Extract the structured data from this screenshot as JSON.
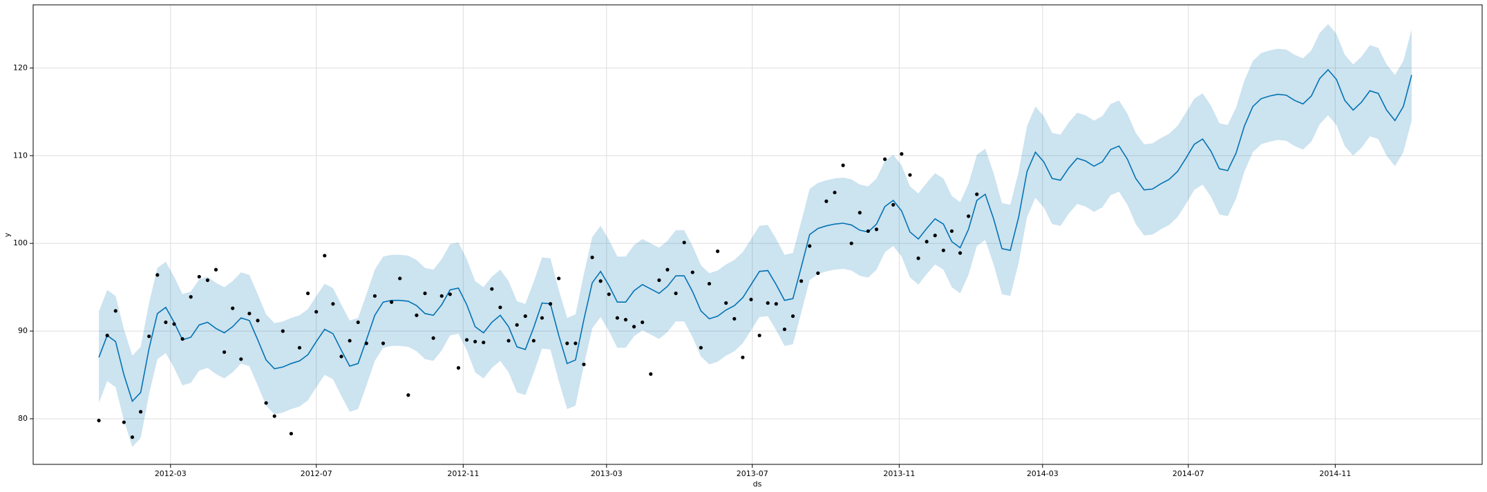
{
  "chart_data": {
    "type": "line",
    "xlabel": "ds",
    "ylabel": "y",
    "grid": true,
    "xlim": [
      "2011-11-07",
      "2015-03-04"
    ],
    "xticks": [
      {
        "value": "2012-03-01",
        "label": "2012-03"
      },
      {
        "value": "2012-07-01",
        "label": "2012-07"
      },
      {
        "value": "2012-11-01",
        "label": "2012-11"
      },
      {
        "value": "2013-03-01",
        "label": "2013-03"
      },
      {
        "value": "2013-07-01",
        "label": "2013-07"
      },
      {
        "value": "2013-11-01",
        "label": "2013-11"
      },
      {
        "value": "2014-03-01",
        "label": "2014-03"
      },
      {
        "value": "2014-07-01",
        "label": "2014-07"
      },
      {
        "value": "2014-11-01",
        "label": "2014-11"
      }
    ],
    "ylim": [
      74.8,
      127.2
    ],
    "yticks": [
      80,
      90,
      100,
      110,
      120
    ],
    "x": [
      "2012-01-01",
      "2012-01-08",
      "2012-01-15",
      "2012-01-22",
      "2012-01-29",
      "2012-02-05",
      "2012-02-12",
      "2012-02-19",
      "2012-02-26",
      "2012-03-04",
      "2012-03-11",
      "2012-03-18",
      "2012-03-25",
      "2012-04-01",
      "2012-04-08",
      "2012-04-15",
      "2012-04-22",
      "2012-04-29",
      "2012-05-06",
      "2012-05-13",
      "2012-05-20",
      "2012-05-27",
      "2012-06-03",
      "2012-06-10",
      "2012-06-17",
      "2012-06-24",
      "2012-07-01",
      "2012-07-08",
      "2012-07-15",
      "2012-07-22",
      "2012-07-29",
      "2012-08-05",
      "2012-08-12",
      "2012-08-19",
      "2012-08-26",
      "2012-09-02",
      "2012-09-09",
      "2012-09-16",
      "2012-09-23",
      "2012-09-30",
      "2012-10-07",
      "2012-10-14",
      "2012-10-21",
      "2012-10-28",
      "2012-11-04",
      "2012-11-11",
      "2012-11-18",
      "2012-11-25",
      "2012-12-02",
      "2012-12-09",
      "2012-12-16",
      "2012-12-23",
      "2012-12-30",
      "2013-01-06",
      "2013-01-13",
      "2013-01-20",
      "2013-01-27",
      "2013-02-03",
      "2013-02-10",
      "2013-02-17",
      "2013-02-24",
      "2013-03-03",
      "2013-03-10",
      "2013-03-17",
      "2013-03-24",
      "2013-03-31",
      "2013-04-07",
      "2013-04-14",
      "2013-04-21",
      "2013-04-28",
      "2013-05-05",
      "2013-05-12",
      "2013-05-19",
      "2013-05-26",
      "2013-06-02",
      "2013-06-09",
      "2013-06-16",
      "2013-06-23",
      "2013-06-30",
      "2013-07-07",
      "2013-07-14",
      "2013-07-21",
      "2013-07-28",
      "2013-08-04",
      "2013-08-11",
      "2013-08-18",
      "2013-08-25",
      "2013-09-01",
      "2013-09-08",
      "2013-09-15",
      "2013-09-22",
      "2013-09-29",
      "2013-10-06",
      "2013-10-13",
      "2013-10-20",
      "2013-10-27",
      "2013-11-03",
      "2013-11-10",
      "2013-11-17",
      "2013-11-24",
      "2013-12-01",
      "2013-12-08",
      "2013-12-15",
      "2013-12-22",
      "2013-12-29",
      "2014-01-05",
      "2014-01-12",
      "2014-01-19",
      "2014-01-26",
      "2014-02-02",
      "2014-02-09",
      "2014-02-16",
      "2014-02-23",
      "2014-03-02",
      "2014-03-09",
      "2014-03-16",
      "2014-03-23",
      "2014-03-30",
      "2014-04-06",
      "2014-04-13",
      "2014-04-20",
      "2014-04-27",
      "2014-05-04",
      "2014-05-11",
      "2014-05-18",
      "2014-05-25",
      "2014-06-01",
      "2014-06-08",
      "2014-06-15",
      "2014-06-22",
      "2014-06-29",
      "2014-07-06",
      "2014-07-13",
      "2014-07-20",
      "2014-07-27",
      "2014-08-03",
      "2014-08-10",
      "2014-08-17",
      "2014-08-24",
      "2014-08-31",
      "2014-09-07",
      "2014-09-14",
      "2014-09-21",
      "2014-09-28",
      "2014-10-05",
      "2014-10-12",
      "2014-10-19",
      "2014-10-26",
      "2014-11-02",
      "2014-11-09",
      "2014-11-16",
      "2014-11-23",
      "2014-11-30",
      "2014-12-07",
      "2014-12-14",
      "2014-12-21",
      "2014-12-28",
      "2015-01-04"
    ],
    "series": [
      {
        "type": "band",
        "color": "#0072b2",
        "opacity": 0.2,
        "lower": [
          81.8,
          84.3,
          83.6,
          79.8,
          76.8,
          77.8,
          82.8,
          86.8,
          87.5,
          85.8,
          83.8,
          84.1,
          85.5,
          85.8,
          85.1,
          84.6,
          85.3,
          86.3,
          86,
          83.8,
          81.5,
          80.5,
          80.7,
          81.1,
          81.4,
          82.1,
          83.6,
          85,
          84.5,
          82.6,
          80.8,
          81.1,
          83.8,
          86.6,
          88.1,
          88.3,
          88.3,
          88.2,
          87.7,
          86.8,
          86.6,
          87.8,
          89.5,
          89.7,
          87.8,
          85.3,
          84.6,
          85.8,
          86.6,
          85.3,
          83,
          82.7,
          85.2,
          88,
          87.9,
          84.3,
          81.1,
          81.5,
          86.1,
          90.3,
          91.6,
          90,
          88.1,
          88.1,
          89.4,
          90.1,
          89.6,
          89.1,
          89.9,
          91.1,
          91.1,
          89.3,
          87.1,
          86.2,
          86.5,
          87.2,
          87.7,
          88.6,
          90.1,
          91.6,
          91.7,
          90.1,
          88.3,
          88.5,
          92.1,
          95.8,
          96.5,
          96.8,
          97,
          97.1,
          96.9,
          96.3,
          96.1,
          97,
          99,
          99.7,
          98.5,
          96.1,
          95.3,
          96.5,
          97.6,
          97,
          95,
          94.3,
          96.4,
          99.7,
          100.4,
          97.6,
          94.2,
          94,
          97.8,
          103,
          105.2,
          104.1,
          102.2,
          102,
          103.4,
          104.5,
          104.2,
          103.6,
          104.1,
          105.5,
          105.9,
          104.4,
          102.2,
          100.9,
          101,
          101.6,
          102.1,
          103,
          104.5,
          106.1,
          106.7,
          105.3,
          103.3,
          103.1,
          105.1,
          108.2,
          110.4,
          111.3,
          111.6,
          111.8,
          111.7,
          111.1,
          110.7,
          111.6,
          113.6,
          114.6,
          113.5,
          111.1,
          110,
          110.9,
          112.2,
          111.9,
          110,
          108.8,
          110.4,
          114
        ],
        "upper": [
          92.2,
          94.7,
          94,
          90.2,
          87.2,
          88.2,
          93.2,
          97.2,
          97.9,
          96.2,
          94.2,
          94.5,
          95.9,
          96.2,
          95.5,
          95,
          95.7,
          96.7,
          96.4,
          94.2,
          91.9,
          90.9,
          91.1,
          91.5,
          91.8,
          92.5,
          94,
          95.4,
          94.9,
          93,
          91.2,
          91.5,
          94.2,
          97,
          98.5,
          98.7,
          98.7,
          98.6,
          98.1,
          97.2,
          97,
          98.2,
          99.9,
          100.1,
          98.2,
          95.7,
          95,
          96.2,
          97,
          95.7,
          93.4,
          93.1,
          95.6,
          98.4,
          98.3,
          94.7,
          91.5,
          91.9,
          96.5,
          100.7,
          102,
          100.4,
          98.5,
          98.5,
          99.8,
          100.5,
          100,
          99.5,
          100.3,
          101.5,
          101.5,
          99.7,
          97.5,
          96.6,
          96.9,
          97.6,
          98.1,
          99,
          100.5,
          102,
          102.1,
          100.5,
          98.7,
          98.9,
          102.5,
          106.2,
          106.9,
          107.2,
          107.4,
          107.5,
          107.3,
          106.7,
          106.5,
          107.4,
          109.4,
          110.1,
          108.9,
          106.5,
          105.7,
          106.9,
          108,
          107.4,
          105.4,
          104.7,
          106.8,
          110.1,
          110.8,
          108,
          104.6,
          104.4,
          108.2,
          113.4,
          115.6,
          114.5,
          112.6,
          112.4,
          113.8,
          114.9,
          114.6,
          114,
          114.5,
          115.9,
          116.3,
          114.8,
          112.6,
          111.3,
          111.4,
          112,
          112.5,
          113.4,
          114.9,
          116.5,
          117.1,
          115.7,
          113.7,
          113.5,
          115.5,
          118.6,
          120.8,
          121.7,
          122,
          122.2,
          122.1,
          121.5,
          121.1,
          122,
          124,
          125,
          123.9,
          121.5,
          120.4,
          121.3,
          122.6,
          122.3,
          120.4,
          119.2,
          120.8,
          124.4
        ]
      },
      {
        "type": "line",
        "color": "#0072b2",
        "values": [
          87,
          89.5,
          88.8,
          85,
          82,
          83,
          88,
          92,
          92.7,
          91,
          89,
          89.3,
          90.7,
          91,
          90.3,
          89.8,
          90.5,
          91.5,
          91.2,
          89,
          86.7,
          85.7,
          85.9,
          86.3,
          86.6,
          87.3,
          88.8,
          90.2,
          89.7,
          87.8,
          86,
          86.3,
          89,
          91.8,
          93.3,
          93.5,
          93.5,
          93.4,
          92.9,
          92,
          91.8,
          93,
          94.7,
          94.9,
          93,
          90.5,
          89.8,
          91,
          91.8,
          90.5,
          88.2,
          87.9,
          90.4,
          93.2,
          93.1,
          89.5,
          86.3,
          86.7,
          91.3,
          95.5,
          96.8,
          95.2,
          93.3,
          93.3,
          94.6,
          95.3,
          94.8,
          94.3,
          95.1,
          96.3,
          96.3,
          94.5,
          92.3,
          91.4,
          91.7,
          92.4,
          92.9,
          93.8,
          95.3,
          96.8,
          96.9,
          95.3,
          93.5,
          93.7,
          97.3,
          101,
          101.7,
          102,
          102.2,
          102.3,
          102.1,
          101.5,
          101.3,
          102.2,
          104.2,
          104.9,
          103.7,
          101.3,
          100.5,
          101.7,
          102.8,
          102.2,
          100.2,
          99.5,
          101.6,
          104.9,
          105.6,
          102.8,
          99.4,
          99.2,
          103,
          108.2,
          110.4,
          109.3,
          107.4,
          107.2,
          108.6,
          109.7,
          109.4,
          108.8,
          109.3,
          110.7,
          111.1,
          109.6,
          107.4,
          106.1,
          106.2,
          106.8,
          107.3,
          108.2,
          109.7,
          111.3,
          111.9,
          110.5,
          108.5,
          108.3,
          110.3,
          113.4,
          115.6,
          116.5,
          116.8,
          117,
          116.9,
          116.3,
          115.9,
          116.8,
          118.8,
          119.8,
          118.7,
          116.3,
          115.2,
          116.1,
          117.4,
          117.1,
          115.2,
          114,
          115.6,
          119.2
        ]
      },
      {
        "type": "scatter",
        "color": "#000000",
        "values": [
          79.8,
          89.5,
          92.3,
          79.6,
          77.9,
          80.8,
          89.4,
          96.4,
          91,
          90.8,
          89.1,
          93.9,
          96.2,
          95.8,
          97,
          87.6,
          92.6,
          86.8,
          92,
          91.2,
          81.8,
          80.3,
          90,
          78.3,
          88.1,
          94.3,
          92.2,
          98.6,
          93.1,
          87.1,
          88.9,
          91,
          88.6,
          94,
          88.6,
          93.3,
          96,
          82.7,
          91.8,
          94.3,
          89.2,
          94,
          94.2,
          85.8,
          89,
          88.8,
          88.7,
          94.8,
          92.7,
          88.9,
          90.7,
          91.7,
          88.9,
          91.5,
          93.1,
          96,
          88.6,
          88.6,
          86.2,
          98.4,
          95.7,
          94.2,
          91.5,
          91.3,
          90.5,
          91,
          85.1,
          95.8,
          97,
          94.3,
          100.1,
          96.7,
          88.1,
          95.4,
          99.1,
          93.2,
          91.4,
          87,
          93.6,
          89.5,
          93.2,
          93.1,
          90.2,
          91.7,
          95.7,
          99.7,
          96.6,
          104.8,
          105.8,
          108.9,
          100,
          103.5,
          101.4,
          101.6,
          109.6,
          104.4,
          110.2,
          107.8,
          98.3,
          100.2,
          100.9,
          99.2,
          101.4,
          98.9,
          103.1,
          105.6,
          null,
          null,
          null,
          null,
          null,
          null,
          null,
          null,
          null,
          null,
          null,
          null,
          null,
          null,
          null,
          null,
          null,
          null,
          null,
          null,
          null,
          null,
          null,
          null,
          null,
          null,
          null,
          null,
          null,
          null,
          null,
          null,
          null,
          null,
          null,
          null,
          null,
          null,
          null,
          null,
          null,
          null,
          null,
          null,
          null,
          null,
          null,
          null,
          null,
          null,
          null,
          null
        ]
      }
    ]
  }
}
